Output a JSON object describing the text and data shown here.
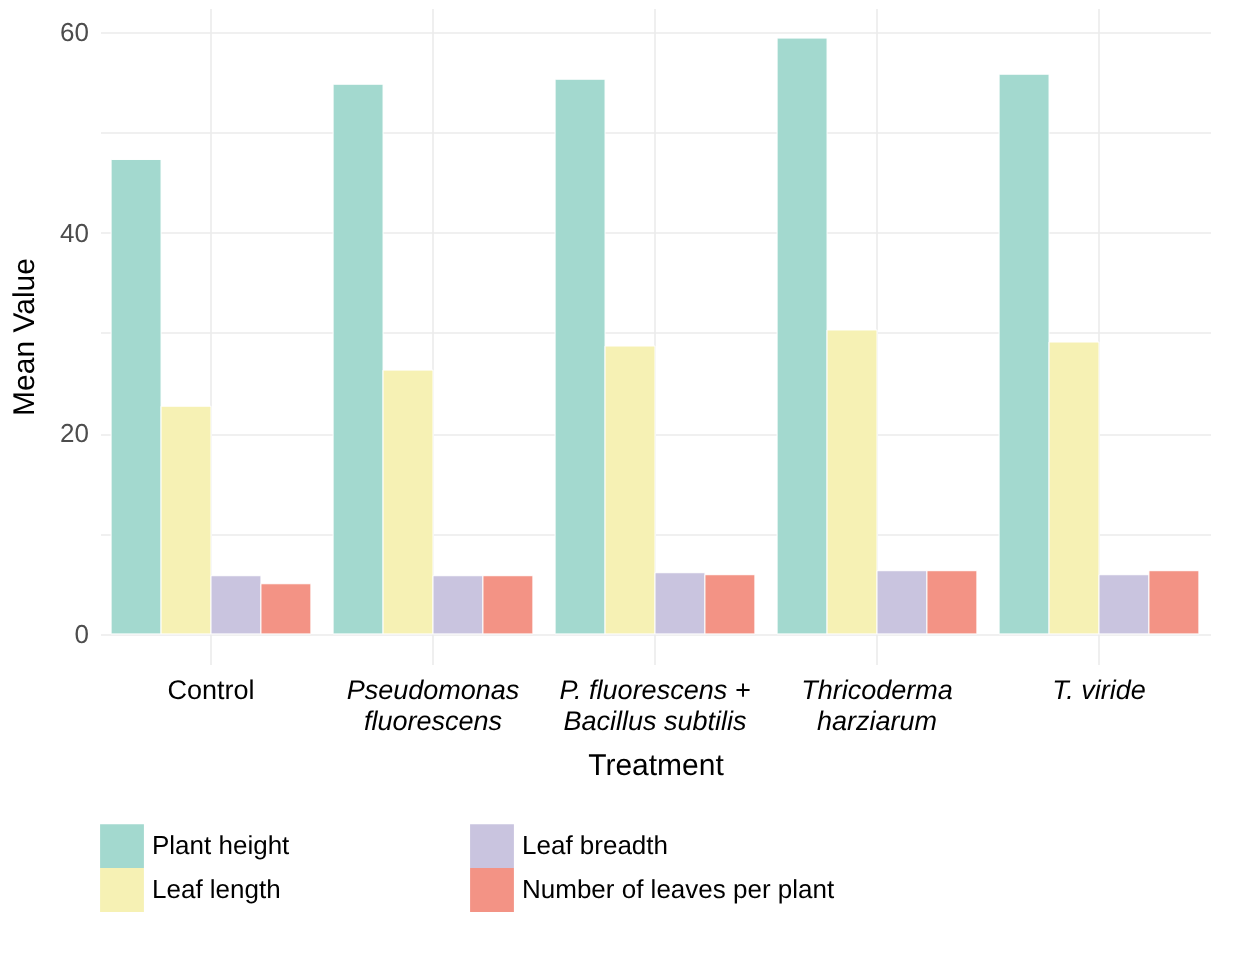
{
  "chart_data": {
    "type": "bar",
    "xlabel": "Treatment",
    "ylabel": "Mean Value",
    "categories": [
      "Control",
      "Pseudomonas fluorescens",
      "P. fluorescens + Bacillus subtilis",
      "Thricoderma harziarum",
      "T. viride"
    ],
    "series": [
      {
        "name": "Plant height",
        "color": "#a3d9cf",
        "values": [
          47.3,
          54.8,
          55.3,
          59.4,
          55.8
        ]
      },
      {
        "name": "Leaf length",
        "color": "#f6f1b4",
        "values": [
          22.7,
          26.3,
          28.7,
          30.3,
          29.1
        ]
      },
      {
        "name": "Leaf breadth",
        "color": "#c9c4df",
        "values": [
          5.8,
          5.8,
          6.1,
          6.3,
          5.9
        ]
      },
      {
        "name": "Number of leaves per plant",
        "color": "#f39385",
        "values": [
          5.0,
          5.8,
          5.9,
          6.3,
          6.3
        ]
      }
    ],
    "ylim": [
      -3,
      62.4
    ],
    "yticks": [
      0,
      {
        "value": 10,
        "label": null
      },
      20,
      {
        "value": 30,
        "label": null
      },
      40,
      {
        "value": 50,
        "label": null
      },
      60
    ],
    "grid": true,
    "legend": "bottom"
  }
}
